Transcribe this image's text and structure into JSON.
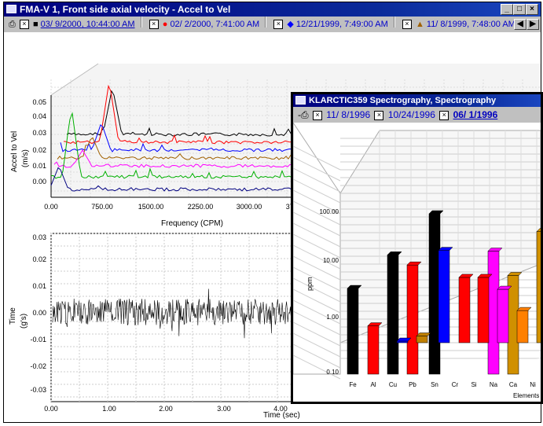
{
  "main_window": {
    "title": "FMA-V 1, Front side axial velocity  - Accel to Vel",
    "toolbar": {
      "dates": [
        {
          "text": "03/ 9/2000, 10:44:00 AM",
          "marker": "■",
          "color": "#000000"
        },
        {
          "text": "02/ 2/2000, 7:41:00 AM",
          "marker": "●",
          "color": "#ff0000"
        },
        {
          "text": "12/21/1999, 7:49:00 AM",
          "marker": "◆",
          "color": "#0000ff"
        },
        {
          "text": "11/ 8/1999, 7:48:00 AM",
          "marker": "▲",
          "color": "#a06000"
        }
      ]
    },
    "top_chart": {
      "ylabel": "Accel to Vel\n(m/s)",
      "yticks": [
        "0.05",
        "0.04",
        "0.03",
        "0.02",
        "0.01",
        "0.00"
      ],
      "xticks": [
        "0.00",
        "750.00",
        "1500.00",
        "2250.00",
        "3000.00",
        "3750.00"
      ],
      "xlabel": "Frequency  (CPM)"
    },
    "bottom_chart": {
      "ylabel": "Time\n(g's)",
      "yticks": [
        "0.03",
        "0.02",
        "0.01",
        "0.00",
        "-0.01",
        "-0.02",
        "-0.03"
      ],
      "xticks": [
        "0.00",
        "1.00",
        "2.00",
        "3.00",
        "4.00"
      ],
      "xlabel": "Time  (sec)"
    }
  },
  "spectro_window": {
    "title": "KLARCTIC359 Spectrography, Spectrography",
    "toolbar": {
      "dates": [
        "11/ 8/1996",
        "10/24/1996",
        "06/ 1/1996"
      ]
    }
  },
  "chart_data": [
    {
      "type": "line",
      "title": "",
      "xlabel": "Frequency  (CPM)",
      "ylabel": "Accel to Vel (m/s)",
      "xlim": [
        0,
        3750
      ],
      "ylim": [
        0,
        0.05
      ],
      "series": [
        {
          "name": "03/ 9/2000, 10:44:00 AM",
          "color": "#000000",
          "peak_x": 1000,
          "peak_y": 0.05
        },
        {
          "name": "02/ 2/2000, 7:41:00 AM",
          "color": "#ff0000",
          "peak_x": 1000,
          "peak_y": 0.045
        },
        {
          "name": "12/21/1999, 7:49:00 AM",
          "color": "#0000ff",
          "peak_x": 1000,
          "peak_y": 0.035
        },
        {
          "name": "11/ 8/1999, 7:48:00 AM",
          "color": "#a06000",
          "peak_x": 750,
          "peak_y": 0.03
        },
        {
          "color": "#ff00ff",
          "peak_x": 500,
          "peak_y": 0.025
        },
        {
          "color": "#00b000",
          "peak_x": 300,
          "peak_y": 0.045
        },
        {
          "color": "#000080",
          "peak_x": 150,
          "peak_y": 0.02
        }
      ]
    },
    {
      "type": "line",
      "xlabel": "Time  (sec)",
      "ylabel": "Time (g's)",
      "xlim": [
        0,
        4.5
      ],
      "ylim": [
        -0.035,
        0.035
      ],
      "series": [
        {
          "color": "#000000",
          "amplitude": 0.015
        }
      ]
    },
    {
      "type": "bar",
      "ylabel": "ppm",
      "xlabel": "Elements",
      "yscale": "log",
      "yticks": [
        "100.00",
        "10.00",
        "1.00",
        "0.10"
      ],
      "categories": [
        "Fe",
        "Al",
        "Cu",
        "Pb",
        "Sn",
        "Cr",
        "Si",
        "Na",
        "Ca",
        "Ni"
      ],
      "series": [
        {
          "name": "06/ 1/1996",
          "values": [
            4,
            0.8,
            17,
            11,
            100,
            0,
            0,
            20,
            7,
            0
          ],
          "colors": [
            "#000000",
            "#ff0000",
            "#000000",
            "#ff0000",
            "#000000",
            "#000000",
            "#000000",
            "#ff00ff",
            "#d09000",
            "#000000"
          ]
        },
        {
          "name": "10/24/1996",
          "values": [
            0,
            0,
            0.7,
            2,
            80,
            25,
            25,
            15,
            6,
            180
          ],
          "colors": [
            "#000000",
            "#000000",
            "#0000ff",
            "#c08000",
            "#0000ff",
            "#ff0000",
            "#ff0000",
            "#ff00ff",
            "#ff8000",
            "#d09000"
          ]
        }
      ]
    }
  ]
}
